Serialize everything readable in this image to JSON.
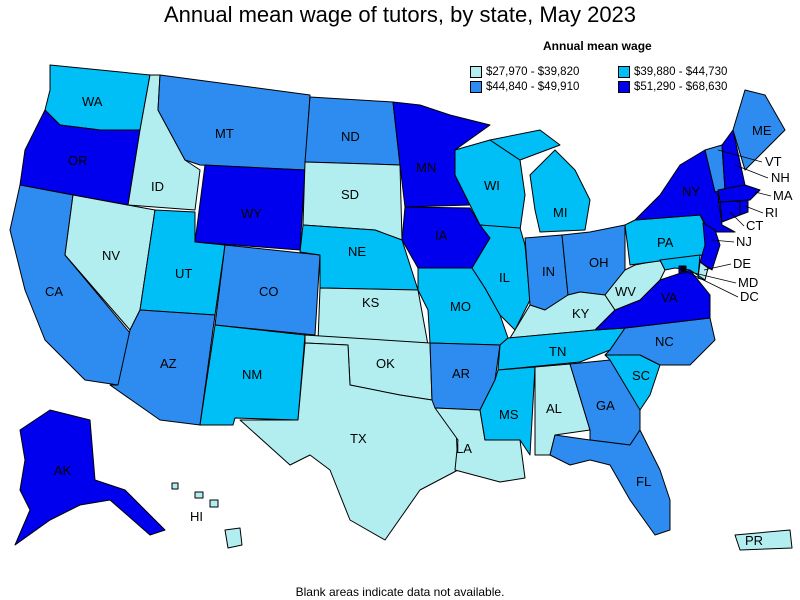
{
  "title": "Annual mean wage of tutors, by state, May 2023",
  "legend": {
    "title": "Annual mean wage",
    "bins": [
      {
        "label": "$27,970 - $39,820",
        "color": "#b2eef0"
      },
      {
        "label": "$39,880 - $44,730",
        "color": "#00bff7"
      },
      {
        "label": "$44,840 - $49,910",
        "color": "#2e8cf0"
      },
      {
        "label": "$51,290 - $68,630",
        "color": "#0000ee"
      }
    ]
  },
  "footnote": "Blank areas indicate data not available.",
  "states": [
    {
      "abbr": "WA",
      "bin": 1
    },
    {
      "abbr": "OR",
      "bin": 3
    },
    {
      "abbr": "CA",
      "bin": 2
    },
    {
      "abbr": "ID",
      "bin": 0
    },
    {
      "abbr": "NV",
      "bin": 0
    },
    {
      "abbr": "MT",
      "bin": 2
    },
    {
      "abbr": "WY",
      "bin": 3
    },
    {
      "abbr": "UT",
      "bin": 1
    },
    {
      "abbr": "AZ",
      "bin": 2
    },
    {
      "abbr": "CO",
      "bin": 2
    },
    {
      "abbr": "NM",
      "bin": 1
    },
    {
      "abbr": "ND",
      "bin": 2
    },
    {
      "abbr": "SD",
      "bin": 0
    },
    {
      "abbr": "NE",
      "bin": 1
    },
    {
      "abbr": "KS",
      "bin": 0
    },
    {
      "abbr": "OK",
      "bin": 0
    },
    {
      "abbr": "TX",
      "bin": 0
    },
    {
      "abbr": "MN",
      "bin": 3
    },
    {
      "abbr": "IA",
      "bin": 3
    },
    {
      "abbr": "MO",
      "bin": 1
    },
    {
      "abbr": "AR",
      "bin": 2
    },
    {
      "abbr": "LA",
      "bin": 0
    },
    {
      "abbr": "WI",
      "bin": 1
    },
    {
      "abbr": "IL",
      "bin": 1
    },
    {
      "abbr": "MI",
      "bin": 1
    },
    {
      "abbr": "IN",
      "bin": 2
    },
    {
      "abbr": "OH",
      "bin": 2
    },
    {
      "abbr": "KY",
      "bin": 0
    },
    {
      "abbr": "TN",
      "bin": 1
    },
    {
      "abbr": "MS",
      "bin": 1
    },
    {
      "abbr": "AL",
      "bin": 0
    },
    {
      "abbr": "GA",
      "bin": 2
    },
    {
      "abbr": "FL",
      "bin": 2
    },
    {
      "abbr": "SC",
      "bin": 1
    },
    {
      "abbr": "NC",
      "bin": 2
    },
    {
      "abbr": "VA",
      "bin": 3
    },
    {
      "abbr": "WV",
      "bin": 0
    },
    {
      "abbr": "PA",
      "bin": 1
    },
    {
      "abbr": "NY",
      "bin": 3
    },
    {
      "abbr": "VT",
      "bin": 2
    },
    {
      "abbr": "NH",
      "bin": 3
    },
    {
      "abbr": "ME",
      "bin": 2
    },
    {
      "abbr": "MA",
      "bin": 3
    },
    {
      "abbr": "RI",
      "bin": 3
    },
    {
      "abbr": "CT",
      "bin": 3
    },
    {
      "abbr": "NJ",
      "bin": 3
    },
    {
      "abbr": "DE",
      "bin": 0
    },
    {
      "abbr": "MD",
      "bin": 1
    },
    {
      "abbr": "DC",
      "bin": 3
    },
    {
      "abbr": "AK",
      "bin": 3
    },
    {
      "abbr": "HI",
      "bin": 0
    },
    {
      "abbr": "PR",
      "bin": 0
    }
  ]
}
